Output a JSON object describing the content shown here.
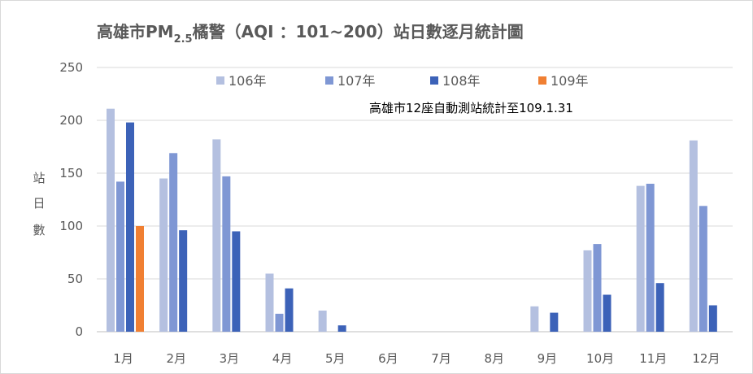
{
  "chart_data": {
    "type": "bar",
    "title_main": "高雄市PM",
    "title_sub": "2.5",
    "title_rest": "橘警（AQI ：101~200）站日數逐月統計圖",
    "ylabel_chars": [
      "站",
      "日",
      "數"
    ],
    "annotation": "高雄市12座自動測站統計至109.1.31",
    "categories": [
      "1月",
      "2月",
      "3月",
      "4月",
      "5月",
      "6月",
      "7月",
      "8月",
      "9月",
      "10月",
      "11月",
      "12月"
    ],
    "yticks": [
      0,
      50,
      100,
      150,
      200,
      250
    ],
    "ylim": [
      0,
      250
    ],
    "grid": true,
    "legend_position": "top",
    "series": [
      {
        "name": "106年",
        "color": "#b4c0e0",
        "values": [
          211,
          145,
          182,
          55,
          20,
          0,
          0,
          0,
          24,
          77,
          138,
          181
        ]
      },
      {
        "name": "107年",
        "color": "#7f97d4",
        "values": [
          142,
          169,
          147,
          17,
          0,
          0,
          0,
          0,
          0,
          83,
          140,
          119
        ]
      },
      {
        "name": "108年",
        "color": "#3c62b8",
        "values": [
          198,
          96,
          95,
          41,
          6,
          0,
          0,
          0,
          18,
          35,
          46,
          25
        ]
      },
      {
        "name": "109年",
        "color": "#f07f32",
        "values": [
          100,
          0,
          0,
          0,
          0,
          0,
          0,
          0,
          0,
          0,
          0,
          0
        ]
      }
    ]
  }
}
